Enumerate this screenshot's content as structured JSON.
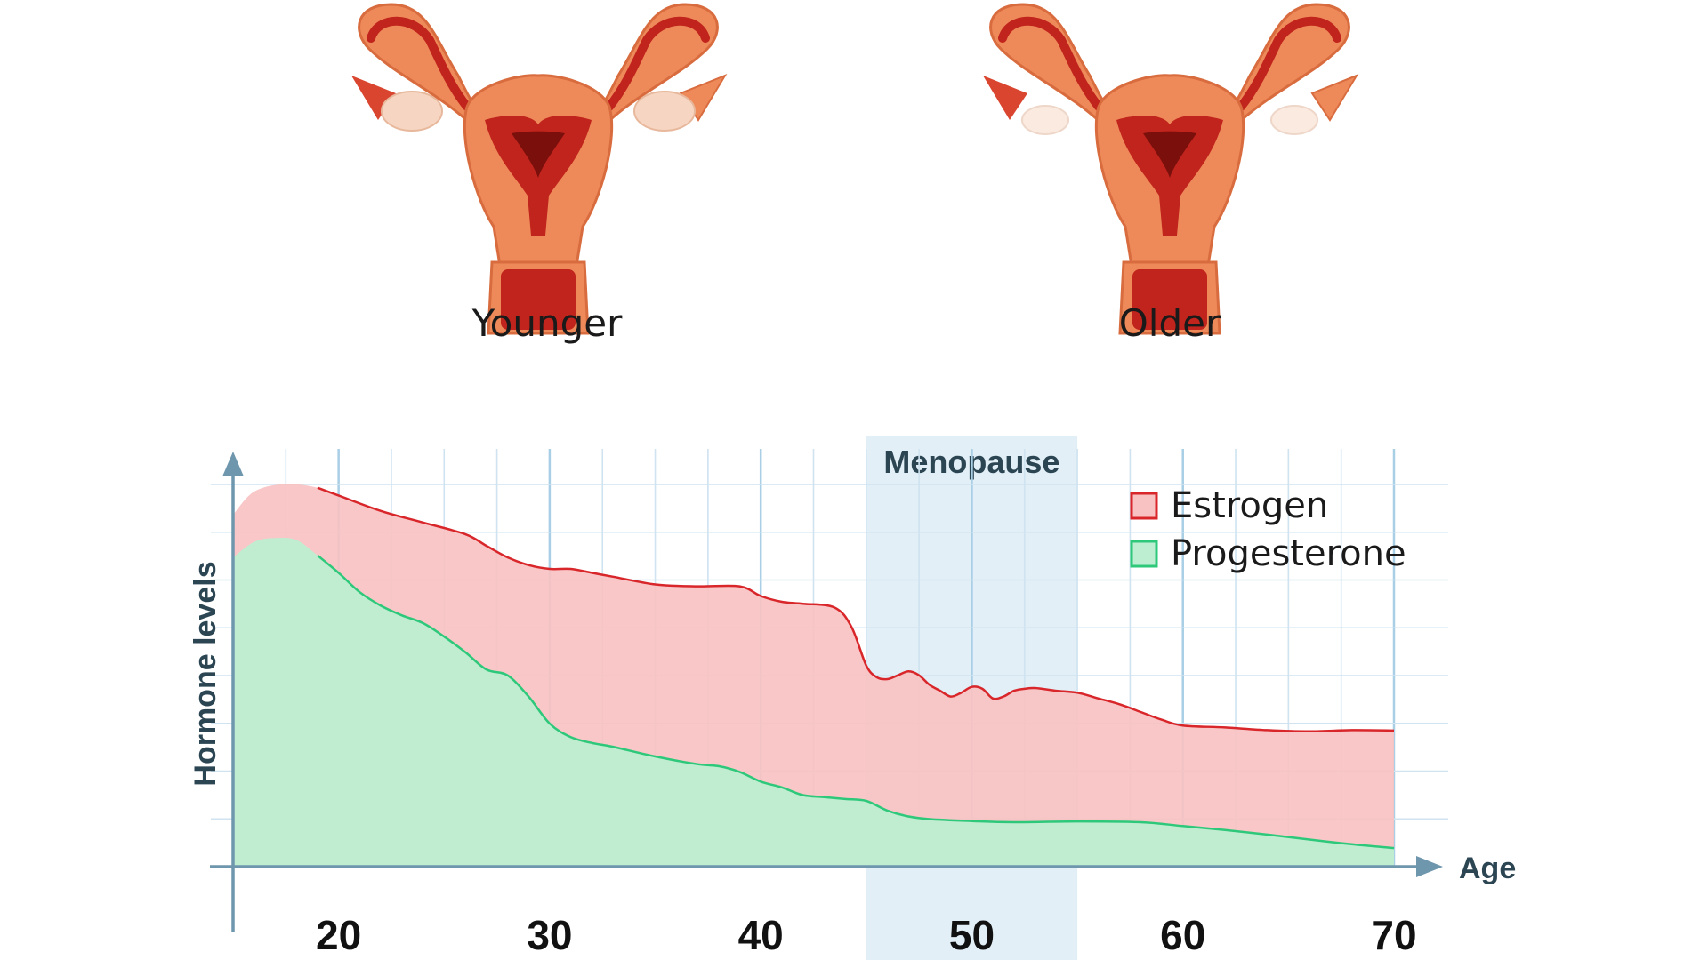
{
  "illustrations": {
    "left_label": "Younger",
    "right_label": "Older",
    "colors": {
      "tissue": "#ee8a5a",
      "tissue_light": "#f7b48c",
      "cavity": "#c0241c",
      "dark": "#7a0f0c",
      "ovary_young": "#f6d6c2",
      "ovary_old": "#fbeadf"
    }
  },
  "chart_data": {
    "type": "area",
    "xlabel": "Age",
    "ylabel": "Hormone levels",
    "xlim": [
      15,
      70
    ],
    "ylim": [
      0,
      100
    ],
    "x_ticks": [
      20,
      30,
      40,
      50,
      60,
      70
    ],
    "grid": true,
    "legend_placement": "top-right",
    "band": {
      "label": "Menopause",
      "x_start": 45,
      "x_end": 55,
      "color": "#d8e9f4"
    },
    "series": [
      {
        "name": "Estrogen",
        "fill": "#f9c2c2",
        "stroke": "#d8262a",
        "x": [
          15,
          16,
          17.5,
          19,
          20,
          22,
          24,
          26,
          27,
          28,
          29,
          30,
          31,
          32,
          33,
          35,
          37,
          39,
          40,
          41,
          42,
          43.5,
          44.3,
          45,
          45.5,
          46,
          46.5,
          47,
          47.5,
          48,
          48.5,
          49,
          49.5,
          50,
          50.5,
          51,
          51.5,
          52,
          52.5,
          53,
          54,
          55,
          56,
          57,
          58,
          59,
          60,
          62,
          64,
          66,
          68,
          70
        ],
        "values": [
          91,
          97,
          99,
          98,
          96,
          92,
          89,
          86,
          83,
          80,
          78,
          77,
          77,
          76,
          75,
          73,
          72.5,
          72.5,
          70,
          68.5,
          68,
          67,
          62,
          52,
          49,
          48.5,
          49.5,
          50.5,
          49.5,
          47,
          45.5,
          44,
          45,
          46.5,
          46,
          43.5,
          44,
          45.5,
          46,
          46.2,
          45.5,
          45,
          43.5,
          42,
          40,
          38,
          36.5,
          36,
          35.3,
          35,
          35.3,
          35.2
        ]
      },
      {
        "name": "Progesterone",
        "fill": "#bdeed1",
        "stroke": "#2ec87a",
        "x": [
          15,
          16,
          17,
          18,
          19,
          20,
          21,
          22,
          23,
          24,
          25,
          26,
          27,
          28,
          29,
          30,
          31,
          32,
          33,
          35,
          37,
          38,
          39,
          40,
          41,
          42,
          43,
          44,
          45,
          46,
          47,
          48,
          50,
          52,
          55,
          58,
          60,
          62,
          64,
          66,
          68,
          70
        ],
        "values": [
          80,
          84,
          85,
          84.5,
          80.5,
          76,
          71,
          67.5,
          65,
          63,
          59.5,
          55.5,
          51,
          49.5,
          44,
          37,
          33.5,
          32,
          31,
          28.5,
          26.5,
          26,
          24.5,
          22,
          20.5,
          18.5,
          18,
          17.5,
          17,
          14.5,
          13,
          12.3,
          11.8,
          11.5,
          11.7,
          11.5,
          10.5,
          9.5,
          8.3,
          7,
          5.8,
          4.8
        ]
      }
    ]
  }
}
